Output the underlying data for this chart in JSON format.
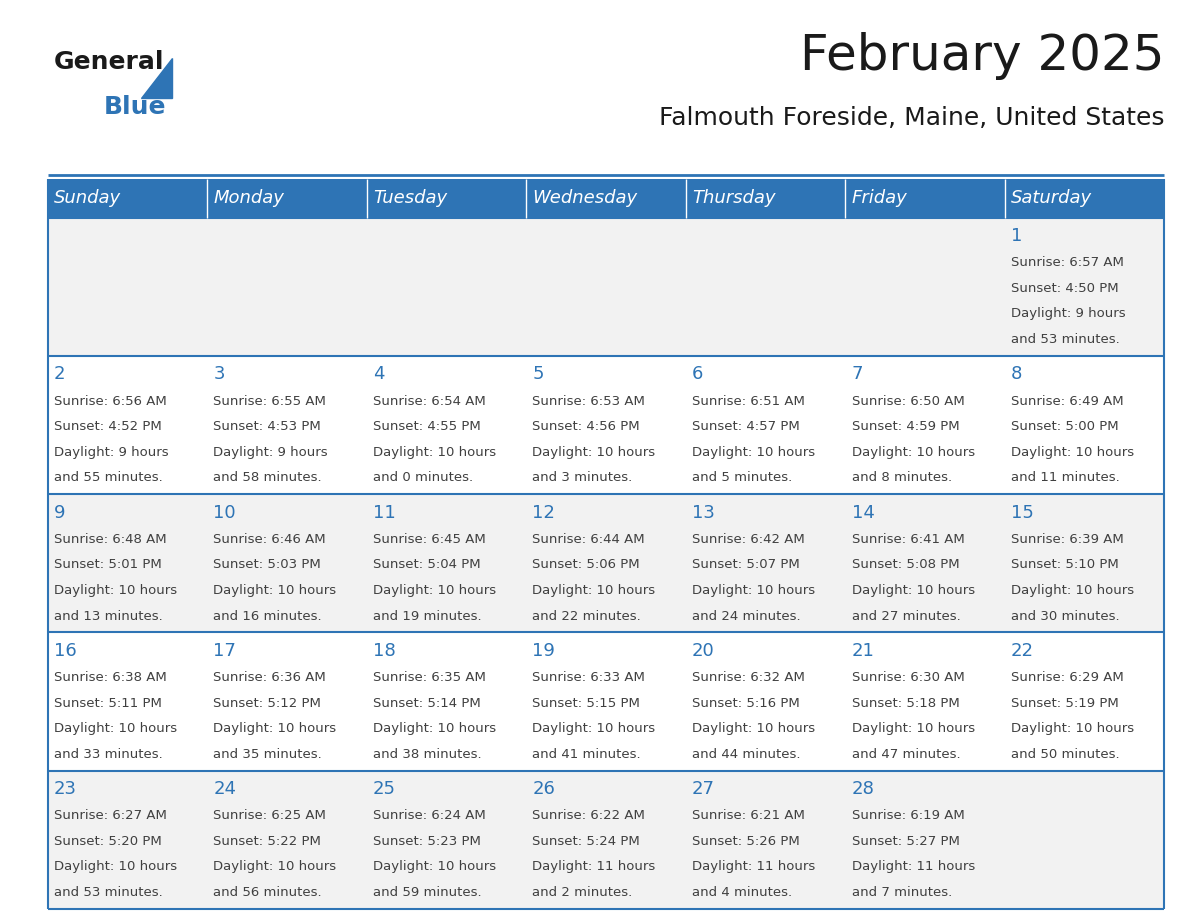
{
  "title": "February 2025",
  "subtitle": "Falmouth Foreside, Maine, United States",
  "header_bg": "#2E74B5",
  "header_text_color": "#FFFFFF",
  "day_names": [
    "Sunday",
    "Monday",
    "Tuesday",
    "Wednesday",
    "Thursday",
    "Friday",
    "Saturday"
  ],
  "cell_bg_odd": "#F2F2F2",
  "cell_bg_even": "#FFFFFF",
  "cell_border_color": "#2E74B5",
  "day_number_color": "#2E74B5",
  "info_text_color": "#404040",
  "calendar": [
    [
      null,
      null,
      null,
      null,
      null,
      null,
      {
        "day": 1,
        "sunrise": "6:57 AM",
        "sunset": "4:50 PM",
        "daylight": "9 hours and 53 minutes."
      }
    ],
    [
      {
        "day": 2,
        "sunrise": "6:56 AM",
        "sunset": "4:52 PM",
        "daylight": "9 hours and 55 minutes."
      },
      {
        "day": 3,
        "sunrise": "6:55 AM",
        "sunset": "4:53 PM",
        "daylight": "9 hours and 58 minutes."
      },
      {
        "day": 4,
        "sunrise": "6:54 AM",
        "sunset": "4:55 PM",
        "daylight": "10 hours and 0 minutes."
      },
      {
        "day": 5,
        "sunrise": "6:53 AM",
        "sunset": "4:56 PM",
        "daylight": "10 hours and 3 minutes."
      },
      {
        "day": 6,
        "sunrise": "6:51 AM",
        "sunset": "4:57 PM",
        "daylight": "10 hours and 5 minutes."
      },
      {
        "day": 7,
        "sunrise": "6:50 AM",
        "sunset": "4:59 PM",
        "daylight": "10 hours and 8 minutes."
      },
      {
        "day": 8,
        "sunrise": "6:49 AM",
        "sunset": "5:00 PM",
        "daylight": "10 hours and 11 minutes."
      }
    ],
    [
      {
        "day": 9,
        "sunrise": "6:48 AM",
        "sunset": "5:01 PM",
        "daylight": "10 hours and 13 minutes."
      },
      {
        "day": 10,
        "sunrise": "6:46 AM",
        "sunset": "5:03 PM",
        "daylight": "10 hours and 16 minutes."
      },
      {
        "day": 11,
        "sunrise": "6:45 AM",
        "sunset": "5:04 PM",
        "daylight": "10 hours and 19 minutes."
      },
      {
        "day": 12,
        "sunrise": "6:44 AM",
        "sunset": "5:06 PM",
        "daylight": "10 hours and 22 minutes."
      },
      {
        "day": 13,
        "sunrise": "6:42 AM",
        "sunset": "5:07 PM",
        "daylight": "10 hours and 24 minutes."
      },
      {
        "day": 14,
        "sunrise": "6:41 AM",
        "sunset": "5:08 PM",
        "daylight": "10 hours and 27 minutes."
      },
      {
        "day": 15,
        "sunrise": "6:39 AM",
        "sunset": "5:10 PM",
        "daylight": "10 hours and 30 minutes."
      }
    ],
    [
      {
        "day": 16,
        "sunrise": "6:38 AM",
        "sunset": "5:11 PM",
        "daylight": "10 hours and 33 minutes."
      },
      {
        "day": 17,
        "sunrise": "6:36 AM",
        "sunset": "5:12 PM",
        "daylight": "10 hours and 35 minutes."
      },
      {
        "day": 18,
        "sunrise": "6:35 AM",
        "sunset": "5:14 PM",
        "daylight": "10 hours and 38 minutes."
      },
      {
        "day": 19,
        "sunrise": "6:33 AM",
        "sunset": "5:15 PM",
        "daylight": "10 hours and 41 minutes."
      },
      {
        "day": 20,
        "sunrise": "6:32 AM",
        "sunset": "5:16 PM",
        "daylight": "10 hours and 44 minutes."
      },
      {
        "day": 21,
        "sunrise": "6:30 AM",
        "sunset": "5:18 PM",
        "daylight": "10 hours and 47 minutes."
      },
      {
        "day": 22,
        "sunrise": "6:29 AM",
        "sunset": "5:19 PM",
        "daylight": "10 hours and 50 minutes."
      }
    ],
    [
      {
        "day": 23,
        "sunrise": "6:27 AM",
        "sunset": "5:20 PM",
        "daylight": "10 hours and 53 minutes."
      },
      {
        "day": 24,
        "sunrise": "6:25 AM",
        "sunset": "5:22 PM",
        "daylight": "10 hours and 56 minutes."
      },
      {
        "day": 25,
        "sunrise": "6:24 AM",
        "sunset": "5:23 PM",
        "daylight": "10 hours and 59 minutes."
      },
      {
        "day": 26,
        "sunrise": "6:22 AM",
        "sunset": "5:24 PM",
        "daylight": "11 hours and 2 minutes."
      },
      {
        "day": 27,
        "sunrise": "6:21 AM",
        "sunset": "5:26 PM",
        "daylight": "11 hours and 4 minutes."
      },
      {
        "day": 28,
        "sunrise": "6:19 AM",
        "sunset": "5:27 PM",
        "daylight": "11 hours and 7 minutes."
      },
      null
    ]
  ],
  "logo_text_general": "General",
  "logo_text_blue": "Blue",
  "title_fontsize": 36,
  "subtitle_fontsize": 18,
  "header_fontsize": 13,
  "day_num_fontsize": 13,
  "info_fontsize": 9.5
}
